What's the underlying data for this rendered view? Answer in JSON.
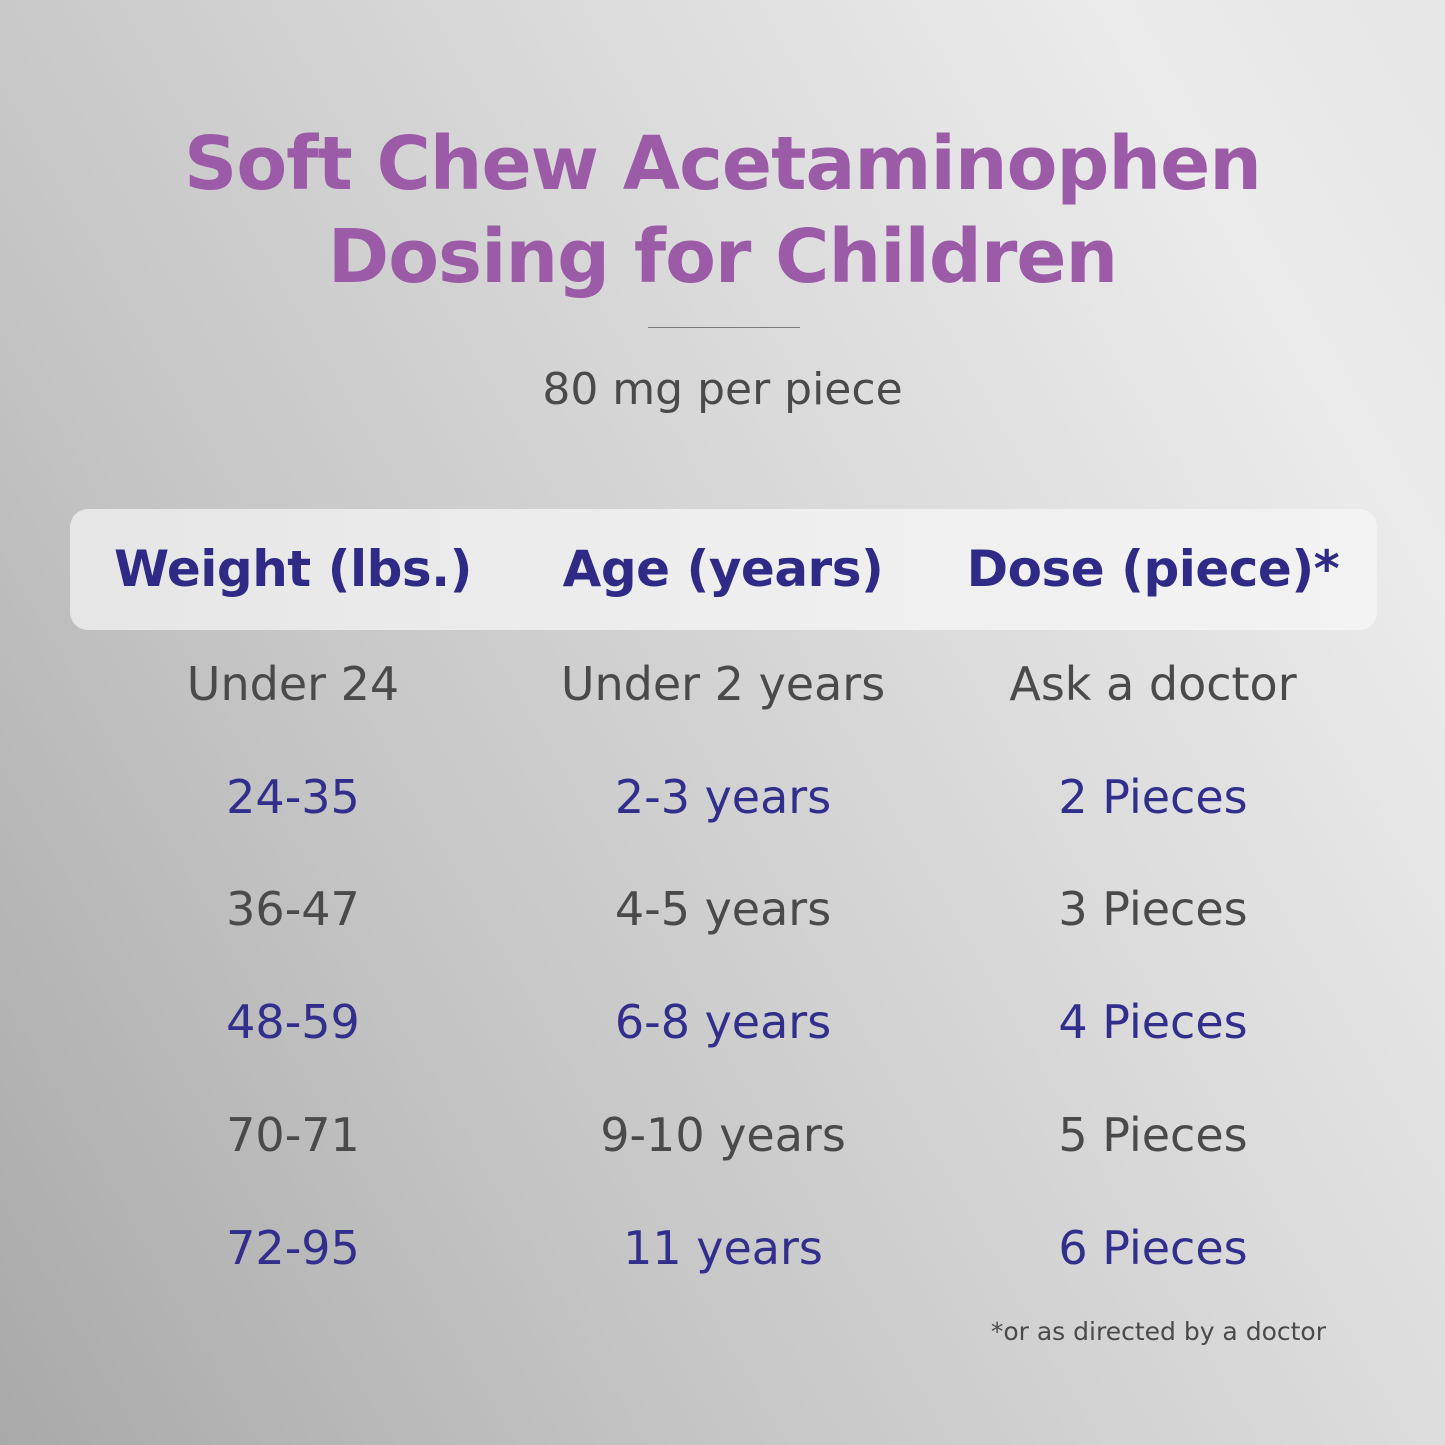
{
  "title": {
    "line1": "Soft Chew Acetaminophen",
    "line2": "Dosing for Children"
  },
  "subtitle": "80 mg per piece",
  "table": {
    "headers": [
      "Weight (lbs.)",
      "Age (years)",
      "Dose (piece)*"
    ],
    "rows": [
      [
        "Under 24",
        "Under 2 years",
        "Ask a doctor"
      ],
      [
        "24-35",
        "2-3 years",
        "2 Pieces"
      ],
      [
        "36-47",
        "4-5 years",
        "3 Pieces"
      ],
      [
        "48-59",
        "6-8 years",
        "4 Pieces"
      ],
      [
        "70-71",
        "9-10 years",
        "5 Pieces"
      ],
      [
        "72-95",
        "11 years",
        "6 Pieces"
      ]
    ]
  },
  "footnote": "*or as directed by a doctor",
  "colors": {
    "title": "#9b5ba7",
    "header_text": "#2f2a86",
    "row_blue": "#322e8c",
    "row_gray": "#4a4a4a"
  }
}
